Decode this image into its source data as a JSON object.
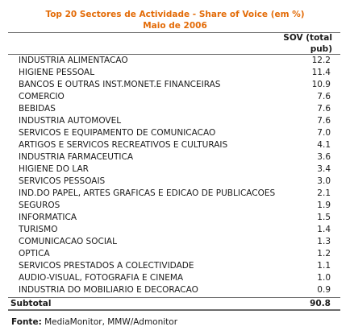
{
  "title": {
    "line1": "Top 20 Sectores de Actividade - Share of Voice (em %)",
    "line2": "Maio de 2006"
  },
  "header": {
    "line1": "SOV (total",
    "line2": "pub)"
  },
  "rows": [
    {
      "label": "INDUSTRIA ALIMENTACAO",
      "value": "12.2"
    },
    {
      "label": "HIGIENE PESSOAL",
      "value": "11.4"
    },
    {
      "label": "BANCOS E OUTRAS INST.MONET.E FINANCEIRAS",
      "value": "10.9"
    },
    {
      "label": "COMERCIO",
      "value": "7.6"
    },
    {
      "label": "BEBIDAS",
      "value": "7.6"
    },
    {
      "label": "INDUSTRIA AUTOMOVEL",
      "value": "7.6"
    },
    {
      "label": "SERVICOS E EQUIPAMENTO DE COMUNICACAO",
      "value": "7.0"
    },
    {
      "label": "ARTIGOS E SERVICOS RECREATIVOS E CULTURAIS",
      "value": "4.1"
    },
    {
      "label": "INDUSTRIA FARMACEUTICA",
      "value": "3.6"
    },
    {
      "label": "HIGIENE DO LAR",
      "value": "3.4"
    },
    {
      "label": "SERVICOS PESSOAIS",
      "value": "3.0"
    },
    {
      "label": "IND.DO PAPEL, ARTES GRAFICAS E EDICAO DE PUBLICACOES",
      "value": "2.1"
    },
    {
      "label": "SEGUROS",
      "value": "1.9"
    },
    {
      "label": "INFORMATICA",
      "value": "1.5"
    },
    {
      "label": "TURISMO",
      "value": "1.4"
    },
    {
      "label": "COMUNICACAO SOCIAL",
      "value": "1.3"
    },
    {
      "label": "OPTICA",
      "value": "1.2"
    },
    {
      "label": "SERVICOS PRESTADOS A COLECTIVIDADE",
      "value": "1.1"
    },
    {
      "label": "AUDIO-VISUAL, FOTOGRAFIA E CINEMA",
      "value": "1.0"
    },
    {
      "label": "INDUSTRIA DO MOBILIARIO E DECORACAO",
      "value": "0.9"
    }
  ],
  "subtotal": {
    "label": "Subtotal",
    "value": "90.8"
  },
  "source": {
    "label": "Fonte:",
    "text": "MediaMonitor, MMW/Admonitor"
  },
  "colors": {
    "title": "#e36b07",
    "rule": "#6b6b6b"
  }
}
